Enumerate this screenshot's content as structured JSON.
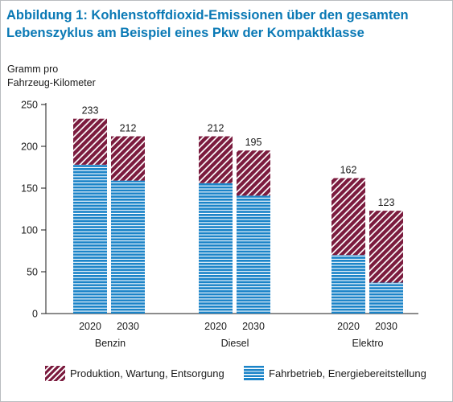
{
  "title": "Abbildung 1: Kohlenstoffdioxid-Emissionen über den gesamten Lebenszyklus am Beispiel eines Pkw der Kompaktklasse",
  "colors": {
    "title": "#0a79b5",
    "produktion": "#7b1b3e",
    "fahrbetrieb": "#1b84c8"
  },
  "chart_data": {
    "type": "bar",
    "stacked": true,
    "ylabel_line1": "Gramm pro",
    "ylabel_line2": "Fahrzeug-Kilometer",
    "ylim": [
      0,
      250
    ],
    "yticks": [
      0,
      50,
      100,
      150,
      200,
      250
    ],
    "grid": false,
    "legend_position": "bottom",
    "groups": [
      {
        "label": "Benzin",
        "bars": [
          {
            "year": "2020",
            "fahrbetrieb": 178,
            "produktion": 55,
            "total": "233"
          },
          {
            "year": "2030",
            "fahrbetrieb": 159,
            "produktion": 53,
            "total": "212"
          }
        ]
      },
      {
        "label": "Diesel",
        "bars": [
          {
            "year": "2020",
            "fahrbetrieb": 156,
            "produktion": 56,
            "total": "212"
          },
          {
            "year": "2030",
            "fahrbetrieb": 141,
            "produktion": 54,
            "total": "195"
          }
        ]
      },
      {
        "label": "Elektro",
        "bars": [
          {
            "year": "2020",
            "fahrbetrieb": 70,
            "produktion": 92,
            "total": "162"
          },
          {
            "year": "2030",
            "fahrbetrieb": 37,
            "produktion": 86,
            "total": "123"
          }
        ]
      }
    ],
    "series": [
      {
        "key": "produktion",
        "name": "Produktion, Wartung, Entsorgung"
      },
      {
        "key": "fahrbetrieb",
        "name": "Fahrbetrieb, Energiebereitstellung"
      }
    ]
  }
}
